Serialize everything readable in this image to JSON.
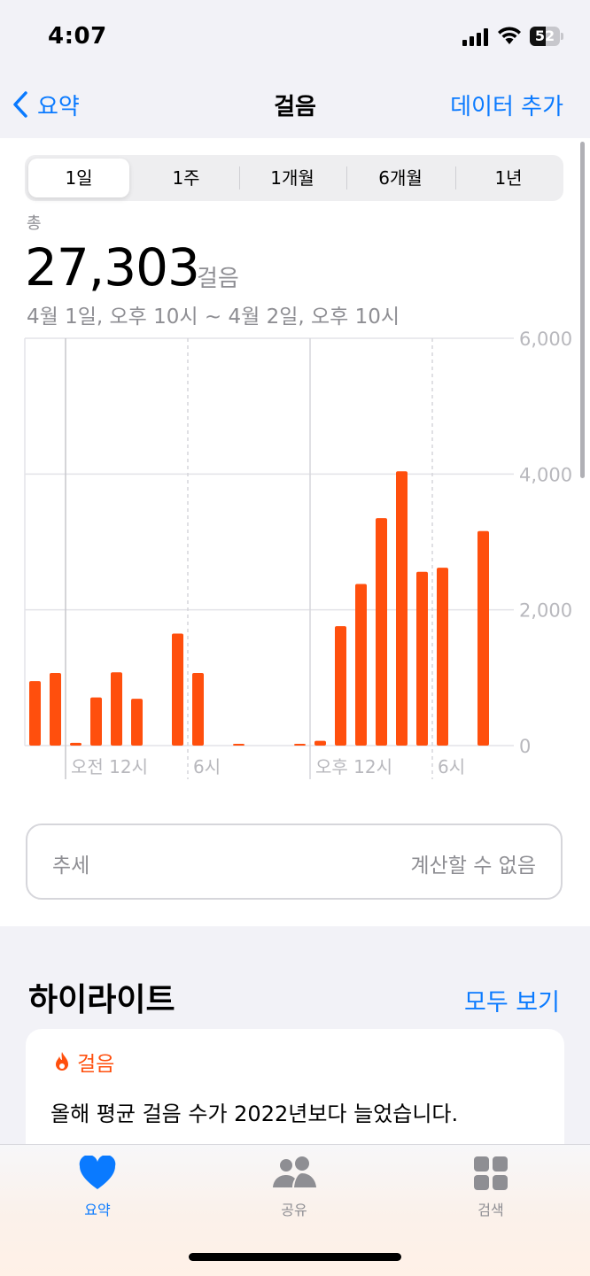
{
  "status": {
    "time": "4:07",
    "battery": "52"
  },
  "nav": {
    "back_label": "요약",
    "title": "걸음",
    "action_label": "데이터 추가"
  },
  "segments": [
    "1일",
    "1주",
    "1개월",
    "6개월",
    "1년"
  ],
  "selected_segment": "1일",
  "summary": {
    "total_label": "총",
    "total_value": "27,303",
    "unit": "걸음",
    "range": "4월 1일, 오후 10시 ~ 4월 2일, 오후 10시"
  },
  "chart_data": {
    "type": "bar",
    "categories": [
      "22",
      "23",
      "0",
      "1",
      "2",
      "3",
      "4",
      "5",
      "6",
      "7",
      "8",
      "9",
      "10",
      "11",
      "12",
      "13",
      "14",
      "15",
      "16",
      "17",
      "18",
      "19",
      "20",
      "21"
    ],
    "values": [
      950,
      1070,
      40,
      710,
      1080,
      690,
      0,
      1650,
      1070,
      0,
      10,
      0,
      0,
      10,
      70,
      1760,
      2380,
      3350,
      4040,
      2560,
      2620,
      0,
      3160,
      0
    ],
    "x_tick_labels": [
      "오전 12시",
      "6시",
      "오후 12시",
      "6시"
    ],
    "y_tick_labels": [
      "6,000",
      "4,000",
      "2,000",
      "0"
    ],
    "ylim": [
      0,
      6000
    ],
    "color": "#ff4f0d",
    "grid": true
  },
  "trend": {
    "label": "추세",
    "value": "계산할 수 없음"
  },
  "highlights": {
    "title": "하이라이트",
    "see_all": "모두 보기",
    "card": {
      "category": "걸음",
      "text": "올해 평균 걸음 수가 2022년보다 늘었습니다."
    }
  },
  "tabbar": [
    {
      "label": "요약",
      "icon": "heart-icon",
      "active": true
    },
    {
      "label": "공유",
      "icon": "people-icon",
      "active": false
    },
    {
      "label": "검색",
      "icon": "grid-icon",
      "active": false
    }
  ],
  "colors": {
    "accent": "#0a7aff",
    "bar": "#ff4f0d",
    "highlight": "#ff4f0d"
  }
}
